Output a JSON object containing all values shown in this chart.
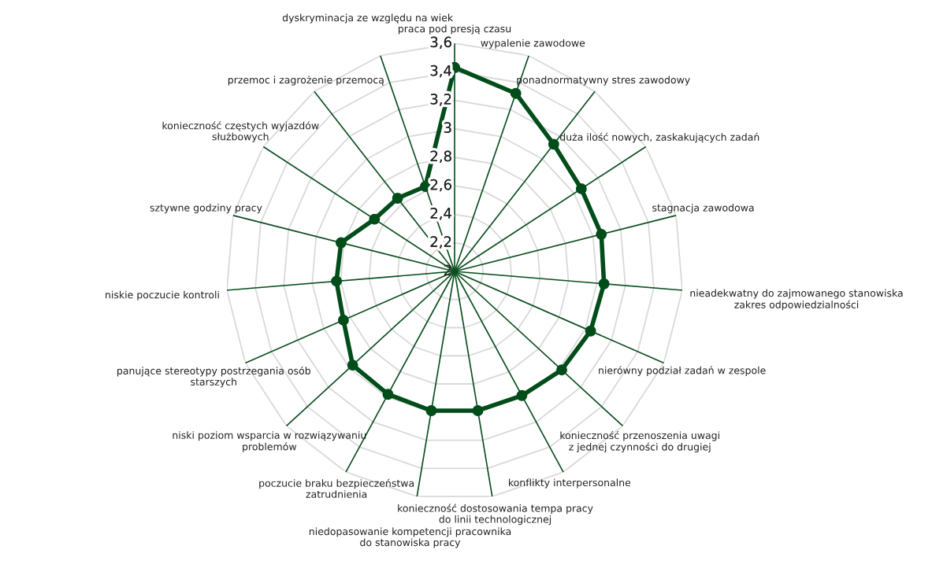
{
  "chart_data": {
    "type": "radar",
    "categories": [
      "praca pod presją czasu",
      "wypalenie zawodowe",
      "ponadnormatywny stres zawodowy",
      "duża ilość nowych, zaskakujących zadań",
      "stagnacja zawodowa",
      "nieadekwatny do zajmowanego stanowiska\nzakres odpowiedzialności",
      "nierówny podział zadań w zespole",
      "konieczność przenoszenia uwagi\nz jednej czynności do drugiej",
      "konflikty interpersonalne",
      "konieczność dostosowania tempa pracy\ndo linii technologicznej",
      "niedopasowanie kompetencji pracownika\ndo stanowiska pracy",
      "poczucie braku bezpieczeństwa\nzatrudnienia",
      "niski poziom wsparcia w rozwiązywaniu\nproblemów",
      "panujące stereotypy postrzegania osób\nstarszych",
      "niskie poczucie kontroli",
      "sztywne godziny pracy",
      "konieczność częstych wyjazdów\nsłużbowych",
      "przemoc i zagrożenie przemocą",
      "dyskryminacja ze względu na wiek"
    ],
    "series": [
      {
        "color": "#004d1a",
        "values": [
          3.43,
          3.32,
          3.13,
          3.06,
          3.06,
          3.05,
          3.04,
          3.02,
          2.99,
          2.99,
          2.99,
          2.98,
          2.97,
          2.85,
          2.83,
          2.82,
          2.67,
          2.65,
          2.63
        ]
      }
    ],
    "ylim": [
      2,
      3.6
    ],
    "yticks": [
      2,
      {
        "value": 2.2,
        "label": "2,2"
      },
      {
        "value": 2.4,
        "label": "2,4"
      },
      {
        "value": 2.6,
        "label": "2,6"
      },
      {
        "value": 2.8,
        "label": "2,8"
      },
      3,
      {
        "value": 3.2,
        "label": "3,2"
      },
      {
        "value": 3.4,
        "label": "3,4"
      },
      {
        "value": 3.6,
        "label": "3,6"
      }
    ],
    "grid": true,
    "marker": "circle",
    "line_style": "solid"
  }
}
